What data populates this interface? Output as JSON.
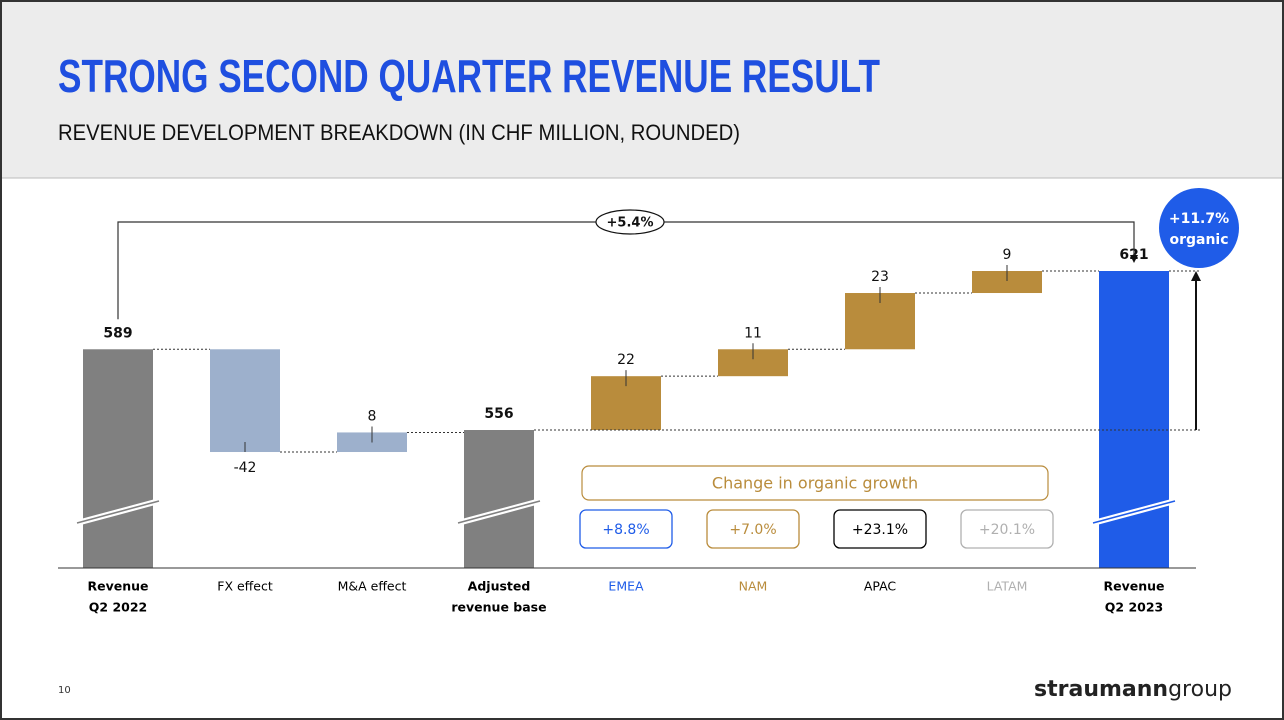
{
  "header": {
    "title": "STRONG SECOND QUARTER REVENUE RESULT",
    "subtitle": "REVENUE DEVELOPMENT BREAKDOWN (IN CHF MILLION, ROUNDED)"
  },
  "chart_data": {
    "type": "waterfall",
    "categories": [
      [
        "Revenue",
        "Q2 2022"
      ],
      [
        "FX effect"
      ],
      [
        "M&A effect"
      ],
      [
        "Adjusted",
        "revenue base"
      ],
      [
        "EMEA"
      ],
      [
        "NAM"
      ],
      [
        "APAC"
      ],
      [
        "LATAM"
      ],
      [
        "Revenue",
        "Q2 2023"
      ]
    ],
    "category_colors": [
      "#000000",
      "#000000",
      "#000000",
      "#000000",
      "#1f5ce8",
      "#b98c3c",
      "#000000",
      "#b0b0b0",
      "#000000"
    ],
    "values": [
      589,
      -42,
      8,
      556,
      22,
      11,
      23,
      9,
      621
    ],
    "totals": [
      true,
      false,
      false,
      true,
      false,
      false,
      false,
      false,
      true
    ],
    "colors": [
      "#808080",
      "#9db0cc",
      "#9db0cc",
      "#808080",
      "#b98c3c",
      "#b98c3c",
      "#b98c3c",
      "#b98c3c",
      "#1f5ce8"
    ],
    "annotations": {
      "growth": "+5.4%",
      "organic": [
        "+11.7%",
        "organic"
      ]
    },
    "organic_growth": {
      "title": "Change in organic growth",
      "items": [
        {
          "label": "+8.8%",
          "color": "#1f5ce8"
        },
        {
          "label": "+7.0%",
          "color": "#b98c3c"
        },
        {
          "label": "+23.1%",
          "color": "#000000"
        },
        {
          "label": "+20.1%",
          "color": "#b0b0b0"
        }
      ]
    }
  },
  "footer": {
    "page": "10",
    "logo": [
      "straumann",
      "group"
    ]
  }
}
